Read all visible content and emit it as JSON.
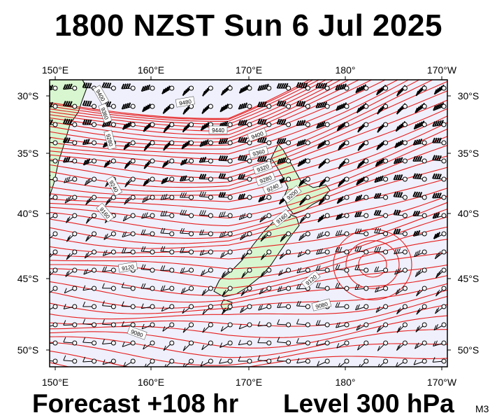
{
  "header": {
    "title": "1800 NZST Sun 6 Jul 2025"
  },
  "footer": {
    "forecast": "Forecast +108 hr",
    "level": "Level 300 hPa",
    "model": "M3"
  },
  "map": {
    "lon_range_deg_east": [
      150,
      190
    ],
    "lat_range_deg": [
      -51.5,
      -28.3
    ],
    "lon_ticks": [
      "150°E",
      "160°E",
      "170°E",
      "180°",
      "170°W"
    ],
    "lat_ticks": [
      "30°S",
      "35°S",
      "40°S",
      "45°S",
      "50°S"
    ],
    "contour_labels": [
      "9480",
      "9440",
      "9400",
      "9360",
      "9320",
      "9280",
      "9240",
      "9200",
      "9160",
      "9120",
      "9080",
      "9120",
      "9160",
      "9200",
      "9240"
    ],
    "colors": {
      "contour": "#e61e1e",
      "land": "#d8f6cf",
      "sea": "#eff0fb",
      "wind_barb": "#000000"
    }
  }
}
